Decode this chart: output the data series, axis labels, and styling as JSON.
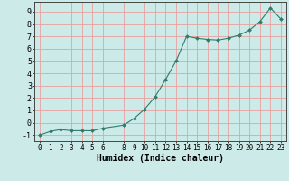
{
  "x": [
    0,
    1,
    2,
    3,
    4,
    5,
    6,
    8,
    9,
    10,
    11,
    12,
    13,
    14,
    15,
    16,
    17,
    18,
    19,
    20,
    21,
    22,
    23
  ],
  "y": [
    -1.0,
    -0.7,
    -0.55,
    -0.65,
    -0.65,
    -0.65,
    -0.45,
    -0.2,
    0.35,
    1.1,
    2.1,
    3.5,
    5.0,
    7.0,
    6.85,
    6.75,
    6.7,
    6.85,
    7.1,
    7.5,
    8.2,
    9.3,
    8.4
  ],
  "xlabel": "Humidex (Indice chaleur)",
  "yticks": [
    -1,
    0,
    1,
    2,
    3,
    4,
    5,
    6,
    7,
    8,
    9
  ],
  "xticks": [
    0,
    1,
    2,
    3,
    4,
    5,
    6,
    8,
    9,
    10,
    11,
    12,
    13,
    14,
    15,
    16,
    17,
    18,
    19,
    20,
    21,
    22,
    23
  ],
  "xlim": [
    -0.5,
    23.5
  ],
  "ylim": [
    -1.5,
    9.8
  ],
  "line_color": "#2d7d6e",
  "marker": "D",
  "markersize": 2.0,
  "bg_color": "#cceae8",
  "grid_color": "#e8a0a0",
  "xlabel_fontsize": 7,
  "tick_fontsize": 5.5
}
